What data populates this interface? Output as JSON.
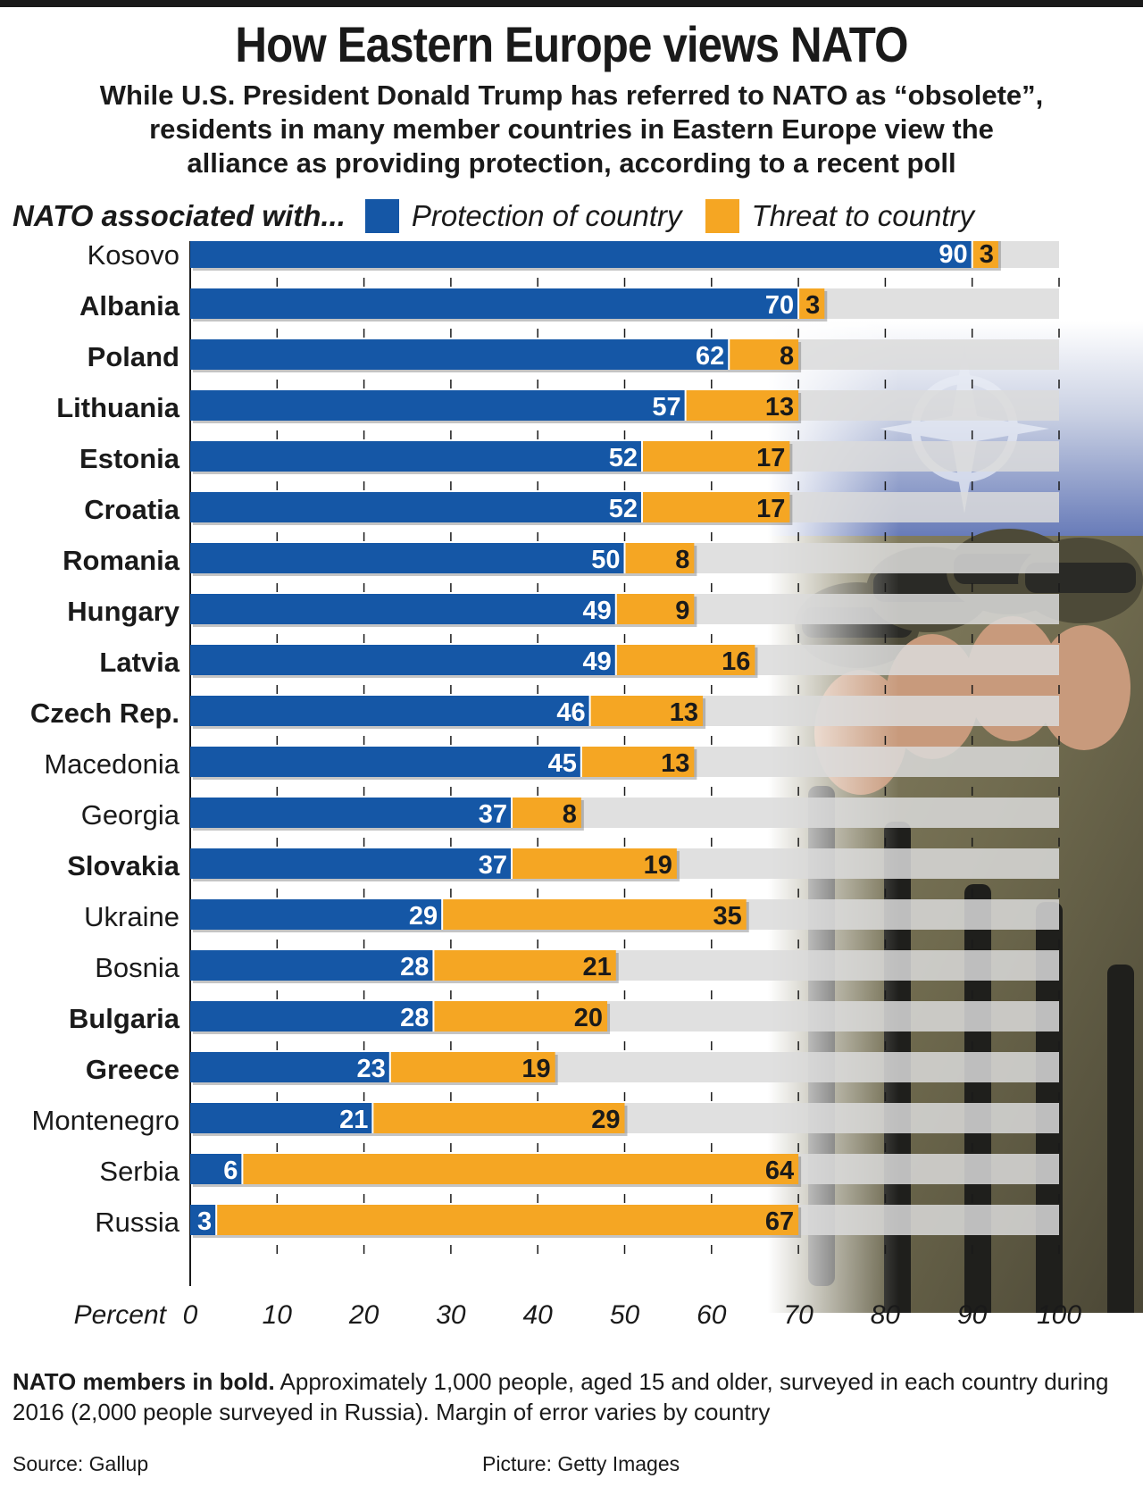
{
  "title": "How Eastern Europe views NATO",
  "subtitle_lines": [
    "While U.S. President Donald Trump has referred to NATO as “obsolete”,",
    "residents in many member countries in Eastern Europe view the",
    "alliance as providing protection, according to a recent poll"
  ],
  "legend": {
    "lead": "NATO associated with...",
    "items": [
      {
        "label": "Protection of country",
        "color": "#1557a6"
      },
      {
        "label": "Threat to country",
        "color": "#f5a623"
      }
    ]
  },
  "footnote": {
    "bold": "NATO members in bold.",
    "text": " Approximately 1,000 people, aged 15 and older, surveyed in each country during 2016 (2,000 people surveyed in Russia). Margin of error varies by country"
  },
  "source": "Source: Gallup",
  "picture_credit": "Picture: Getty Images",
  "colors": {
    "protection": "#1557a6",
    "threat": "#f5a623",
    "track": "#dadada",
    "photo_sky": "#3d56a6",
    "photo_camo": "#6f6a4e"
  },
  "chart_data": {
    "type": "bar",
    "orientation": "horizontal",
    "stacked": true,
    "xlabel": "Percent",
    "xlim": [
      0,
      100
    ],
    "xticks": [
      0,
      10,
      20,
      30,
      40,
      50,
      60,
      70,
      80,
      90,
      100
    ],
    "grid": false,
    "categories": [
      "Kosovo",
      "Albania",
      "Poland",
      "Lithuania",
      "Estonia",
      "Croatia",
      "Romania",
      "Hungary",
      "Latvia",
      "Czech Rep.",
      "Macedonia",
      "Georgia",
      "Slovakia",
      "Ukraine",
      "Bosnia",
      "Bulgaria",
      "Greece",
      "Montenegro",
      "Serbia",
      "Russia"
    ],
    "nato_member": [
      false,
      true,
      true,
      true,
      true,
      true,
      true,
      true,
      true,
      true,
      false,
      false,
      true,
      false,
      false,
      true,
      true,
      false,
      false,
      false
    ],
    "series": [
      {
        "name": "Protection of country",
        "values": [
          90,
          70,
          62,
          57,
          52,
          52,
          50,
          49,
          49,
          46,
          45,
          37,
          37,
          29,
          28,
          28,
          23,
          21,
          6,
          3
        ]
      },
      {
        "name": "Threat to country",
        "values": [
          3,
          3,
          8,
          13,
          17,
          17,
          8,
          9,
          16,
          13,
          13,
          8,
          19,
          35,
          21,
          20,
          19,
          29,
          64,
          67
        ]
      }
    ]
  }
}
